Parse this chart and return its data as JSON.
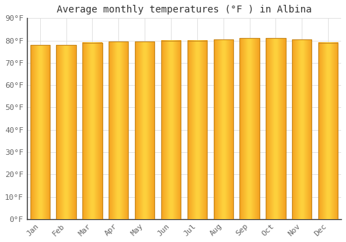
{
  "title": "Average monthly temperatures (°F ) in Albina",
  "categories": [
    "Jan",
    "Feb",
    "Mar",
    "Apr",
    "May",
    "Jun",
    "Jul",
    "Aug",
    "Sep",
    "Oct",
    "Nov",
    "Dec"
  ],
  "values": [
    78,
    78,
    79,
    79.5,
    79.5,
    80,
    80,
    80.5,
    81,
    81,
    80.5,
    79
  ],
  "bar_color_center": "#FFD740",
  "bar_color_edge": "#F5A623",
  "bar_edge_color": "#C8871A",
  "ylim": [
    0,
    90
  ],
  "yticks": [
    0,
    10,
    20,
    30,
    40,
    50,
    60,
    70,
    80,
    90
  ],
  "ytick_labels": [
    "0°F",
    "10°F",
    "20°F",
    "30°F",
    "40°F",
    "50°F",
    "60°F",
    "70°F",
    "80°F",
    "90°F"
  ],
  "background_color": "#FFFFFF",
  "grid_color": "#DDDDDD",
  "title_fontsize": 10,
  "tick_fontsize": 8,
  "font_family": "monospace",
  "bar_width": 0.75
}
